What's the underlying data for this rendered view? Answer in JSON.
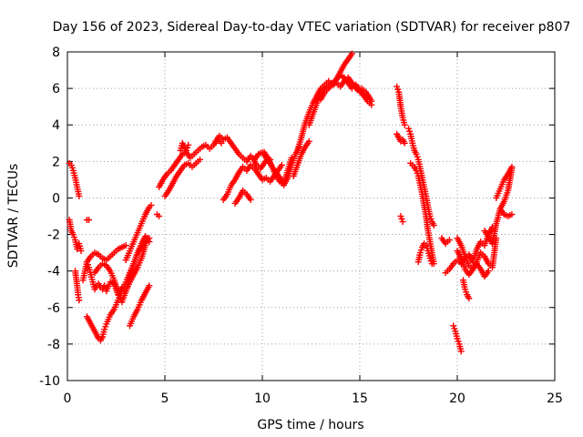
{
  "chart_data": {
    "type": "scatter",
    "title": "Day 156 of 2023, Sidereal Day-to-day VTEC variation (SDTVAR) for receiver p807",
    "xlabel": "GPS time / hours",
    "ylabel": "SDTVAR / TECUs",
    "xlim": [
      0,
      25
    ],
    "ylim": [
      -10,
      8
    ],
    "xticks": [
      0,
      5,
      10,
      15,
      20,
      25
    ],
    "yticks": [
      -10,
      -8,
      -6,
      -4,
      -2,
      0,
      2,
      4,
      6,
      8
    ],
    "grid": true,
    "marker": "plus",
    "colors": {
      "series": "#ff0000",
      "grid": "#a0a0a0",
      "axis": "#000000"
    },
    "series": [
      {
        "name": "",
        "segments": [
          {
            "x": [
              0.1,
              0.2,
              0.3,
              0.4,
              0.5,
              0.6
            ],
            "y": [
              1.9,
              1.8,
              1.5,
              1.1,
              0.6,
              0.1
            ]
          },
          {
            "x": [
              0.1,
              0.2,
              0.3,
              0.4,
              0.5,
              0.6,
              0.7
            ],
            "y": [
              -1.2,
              -1.8,
              -2.0,
              -2.3,
              -2.8,
              -2.5,
              -2.9
            ]
          },
          {
            "x": [
              0.4,
              0.5,
              0.55,
              0.6
            ],
            "y": [
              -4.0,
              -4.8,
              -5.3,
              -5.6
            ]
          },
          {
            "x": [
              1.0,
              1.1
            ],
            "y": [
              -1.2,
              -1.2
            ]
          },
          {
            "x": [
              0.8,
              0.9,
              1.0,
              1.1,
              1.2,
              1.3,
              1.4,
              1.5,
              1.6,
              1.7,
              1.8,
              1.9,
              2.0,
              2.2,
              2.4,
              2.6,
              2.8,
              3.0,
              3.2,
              3.4,
              3.6,
              3.8,
              4.0,
              4.1
            ],
            "y": [
              -4.5,
              -4.0,
              -3.5,
              -3.8,
              -4.2,
              -4.6,
              -5.0,
              -4.8,
              -4.7,
              -4.9,
              -5.0,
              -4.8,
              -5.1,
              -4.6,
              -4.7,
              -5.3,
              -4.9,
              -5.1,
              -4.6,
              -4.2,
              -3.8,
              -3.3,
              -2.6,
              -2.2
            ]
          },
          {
            "x": [
              1.0,
              1.2,
              1.4,
              1.6,
              1.7,
              1.8,
              1.9,
              2.0,
              2.2,
              2.4,
              2.6,
              2.8,
              3.0,
              3.2,
              3.4,
              3.6,
              3.8,
              4.0,
              4.2
            ],
            "y": [
              -6.5,
              -6.9,
              -7.3,
              -7.7,
              -7.8,
              -7.6,
              -7.2,
              -6.9,
              -6.4,
              -6.1,
              -5.6,
              -5.1,
              -4.6,
              -4.1,
              -3.6,
              -3.0,
              -2.5,
              -2.1,
              -2.4
            ]
          },
          {
            "x": [
              1.0,
              1.2,
              1.4,
              1.6,
              1.8,
              2.0,
              2.2,
              2.4,
              2.6,
              2.8,
              3.0
            ],
            "y": [
              -3.5,
              -3.2,
              -3.0,
              -3.1,
              -3.3,
              -3.4,
              -3.2,
              -3.0,
              -2.8,
              -2.7,
              -2.6
            ]
          },
          {
            "x": [
              1.4,
              1.6,
              1.8,
              2.0,
              2.2,
              2.4,
              2.6,
              2.8,
              3.0,
              3.2,
              3.4,
              3.6,
              3.8,
              4.0,
              4.2
            ],
            "y": [
              -4.1,
              -3.8,
              -3.6,
              -3.7,
              -4.0,
              -4.5,
              -5.2,
              -5.7,
              -5.1,
              -4.3,
              -3.6,
              -3.0,
              -2.7,
              -2.4,
              -2.2
            ]
          },
          {
            "x": [
              3.2,
              3.4,
              3.6,
              3.8,
              4.0,
              4.2
            ],
            "y": [
              -7.0,
              -6.5,
              -6.1,
              -5.6,
              -5.2,
              -4.8
            ]
          },
          {
            "x": [
              3.0,
              3.2,
              3.4,
              3.6,
              3.8,
              4.0,
              4.2,
              4.3
            ],
            "y": [
              -3.4,
              -2.9,
              -2.4,
              -1.9,
              -1.4,
              -0.9,
              -0.5,
              -0.4
            ]
          },
          {
            "x": [
              4.6,
              4.7
            ],
            "y": [
              -0.9,
              -1.0
            ]
          },
          {
            "x": [
              4.7,
              4.9,
              5.1,
              5.3,
              5.5,
              5.7,
              5.9,
              6.1,
              6.3,
              6.5,
              6.7,
              6.9,
              7.1,
              7.3,
              7.5,
              7.7,
              7.9
            ],
            "y": [
              0.6,
              1.0,
              1.3,
              1.5,
              1.8,
              2.1,
              2.4,
              2.5,
              2.2,
              2.4,
              2.6,
              2.8,
              2.9,
              2.7,
              2.9,
              3.2,
              3.0
            ]
          },
          {
            "x": [
              5.0,
              5.2,
              5.4,
              5.6,
              5.8,
              6.0,
              6.2,
              6.4,
              6.6,
              6.8
            ],
            "y": [
              0.1,
              0.4,
              0.8,
              1.2,
              1.5,
              1.8,
              1.9,
              1.7,
              1.9,
              2.1
            ]
          },
          {
            "x": [
              5.8,
              5.9,
              6.0,
              6.1,
              6.2
            ],
            "y": [
              2.6,
              3.0,
              2.8,
              2.6,
              2.9
            ]
          },
          {
            "x": [
              7.6,
              7.8,
              8.0,
              8.2,
              8.4,
              8.6,
              8.8,
              9.0,
              9.2,
              9.4,
              9.6,
              9.8,
              10.0,
              10.2,
              10.4
            ],
            "y": [
              3.1,
              3.4,
              3.2,
              3.3,
              3.0,
              2.7,
              2.4,
              2.2,
              2.0,
              2.3,
              2.1,
              2.4,
              2.5,
              2.2,
              2.1
            ]
          },
          {
            "x": [
              8.0,
              8.2,
              8.4,
              8.6,
              8.8,
              9.0,
              9.2,
              9.4,
              9.6,
              9.8,
              10.0,
              10.2,
              10.4,
              10.6,
              10.8,
              11.0
            ],
            "y": [
              -0.1,
              0.2,
              0.7,
              1.0,
              1.4,
              1.7,
              1.5,
              1.8,
              1.6,
              1.3,
              1.0,
              1.1,
              0.9,
              1.2,
              1.5,
              1.8
            ]
          },
          {
            "x": [
              8.6,
              8.8,
              9.0,
              9.2,
              9.4
            ],
            "y": [
              -0.3,
              0.0,
              0.4,
              0.2,
              -0.1
            ]
          },
          {
            "x": [
              9.5,
              9.7,
              9.9,
              10.1,
              10.3,
              10.5,
              10.7,
              10.9,
              11.1,
              11.3,
              11.5,
              11.7,
              11.9
            ],
            "y": [
              2.2,
              1.8,
              1.6,
              1.9,
              2.2,
              1.7,
              1.2,
              0.9,
              0.7,
              1.1,
              1.8,
              2.4,
              2.8
            ]
          },
          {
            "x": [
              10.1,
              10.3,
              10.5,
              10.7,
              10.9,
              11.1,
              11.3,
              11.5
            ],
            "y": [
              2.5,
              2.1,
              1.7,
              1.4,
              1.1,
              0.8,
              1.5,
              2.2
            ]
          },
          {
            "x": [
              11.6,
              11.8,
              12.0,
              12.2,
              12.4
            ],
            "y": [
              1.2,
              1.8,
              2.4,
              2.8,
              3.1
            ]
          },
          {
            "x": [
              11.8,
              12.0,
              12.2,
              12.4,
              12.6,
              12.8,
              13.0,
              13.2,
              13.4,
              13.6,
              13.8,
              14.0,
              14.2,
              14.4,
              14.6
            ],
            "y": [
              2.6,
              3.3,
              4.1,
              4.7,
              5.2,
              5.6,
              6.0,
              6.2,
              6.4,
              6.2,
              6.5,
              6.7,
              6.6,
              6.3,
              6.0
            ]
          },
          {
            "x": [
              12.4,
              12.6,
              12.8,
              13.0,
              13.2,
              13.4,
              13.6,
              13.8,
              14.0,
              14.2,
              14.4,
              14.6
            ],
            "y": [
              4.0,
              4.6,
              5.2,
              5.7,
              6.0,
              6.1,
              6.3,
              6.5,
              6.9,
              7.3,
              7.6,
              7.9
            ]
          },
          {
            "x": [
              13.0,
              13.2,
              13.4,
              13.6,
              13.8,
              14.0,
              14.2,
              14.4,
              14.6,
              14.8,
              15.0
            ],
            "y": [
              5.4,
              5.8,
              6.0,
              6.2,
              6.3,
              6.1,
              6.4,
              6.6,
              6.3,
              6.0,
              5.8
            ]
          },
          {
            "x": [
              14.8,
              15.0,
              15.2,
              15.4,
              15.6
            ],
            "y": [
              6.2,
              5.9,
              5.6,
              5.3,
              5.1
            ]
          },
          {
            "x": [
              15.1,
              15.3,
              15.5,
              15.6
            ],
            "y": [
              6.0,
              5.8,
              5.5,
              5.3
            ]
          },
          {
            "x": [
              16.9,
              17.0,
              17.1,
              17.2,
              17.3
            ],
            "y": [
              6.1,
              5.8,
              5.0,
              4.4,
              4.0
            ]
          },
          {
            "x": [
              16.9,
              17.0,
              17.1,
              17.2,
              17.3
            ],
            "y": [
              3.5,
              3.3,
              3.1,
              3.2,
              3.0
            ]
          },
          {
            "x": [
              17.5,
              17.6,
              17.7,
              17.8,
              17.9,
              18.0,
              18.1,
              18.2,
              18.3,
              18.4,
              18.5,
              18.6,
              18.7,
              18.8
            ],
            "y": [
              3.8,
              3.5,
              3.0,
              2.6,
              2.4,
              2.1,
              1.6,
              1.1,
              0.6,
              0.1,
              -0.5,
              -1.0,
              -1.3,
              -1.5
            ]
          },
          {
            "x": [
              17.6,
              17.7,
              17.8,
              17.9,
              18.0,
              18.1,
              18.2,
              18.3,
              18.4,
              18.5,
              18.6,
              18.7,
              18.8
            ],
            "y": [
              1.9,
              1.8,
              1.7,
              1.5,
              1.2,
              0.7,
              0.2,
              -0.4,
              -1.0,
              -1.8,
              -2.4,
              -3.0,
              -3.6
            ]
          },
          {
            "x": [
              17.1,
              17.2
            ],
            "y": [
              -1.0,
              -1.3
            ]
          },
          {
            "x": [
              18.0,
              18.1,
              18.2,
              18.3,
              18.4,
              18.5,
              18.6,
              18.7
            ],
            "y": [
              -3.5,
              -3.0,
              -2.7,
              -2.5,
              -2.6,
              -2.9,
              -3.3,
              -3.6
            ]
          },
          {
            "x": [
              19.2,
              19.4,
              19.6
            ],
            "y": [
              -2.2,
              -2.5,
              -2.3
            ]
          },
          {
            "x": [
              19.4,
              19.6,
              19.8,
              20.0,
              20.2,
              20.4,
              20.6,
              20.8,
              21.0,
              21.2,
              21.4,
              21.6,
              21.8
            ],
            "y": [
              -4.1,
              -3.9,
              -3.6,
              -3.4,
              -3.6,
              -3.3,
              -3.1,
              -3.5,
              -2.8,
              -2.4,
              -2.6,
              -2.0,
              -1.6
            ]
          },
          {
            "x": [
              20.0,
              20.2,
              20.4,
              20.6,
              20.8,
              21.0,
              21.2,
              21.4,
              21.6,
              21.8,
              22.0
            ],
            "y": [
              -2.2,
              -2.6,
              -3.2,
              -3.7,
              -3.9,
              -3.5,
              -3.0,
              -3.2,
              -3.6,
              -3.8,
              -2.2
            ]
          },
          {
            "x": [
              20.3,
              20.4,
              20.5,
              20.6
            ],
            "y": [
              -4.5,
              -5.0,
              -5.3,
              -5.5
            ]
          },
          {
            "x": [
              19.8,
              19.9,
              20.0,
              20.1,
              20.2
            ],
            "y": [
              -7.0,
              -7.3,
              -7.7,
              -8.0,
              -8.4
            ]
          },
          {
            "x": [
              20.0,
              20.2,
              20.4,
              20.6,
              20.8,
              21.0,
              21.2,
              21.4,
              21.6
            ],
            "y": [
              -2.9,
              -3.3,
              -3.9,
              -4.2,
              -3.9,
              -3.6,
              -3.9,
              -4.3,
              -4.0
            ]
          },
          {
            "x": [
              21.4,
              21.6,
              21.8,
              22.0,
              22.2,
              22.4,
              22.6,
              22.8
            ],
            "y": [
              -1.8,
              -2.1,
              -2.5,
              -1.4,
              -0.6,
              -0.2,
              0.4,
              1.6
            ]
          },
          {
            "x": [
              22.0,
              22.2,
              22.4,
              22.6,
              22.8
            ],
            "y": [
              0.0,
              0.5,
              1.0,
              1.3,
              1.7
            ]
          },
          {
            "x": [
              22.2,
              22.4,
              22.6,
              22.8
            ],
            "y": [
              -0.6,
              -0.9,
              -1.0,
              -0.9
            ]
          }
        ]
      }
    ]
  }
}
